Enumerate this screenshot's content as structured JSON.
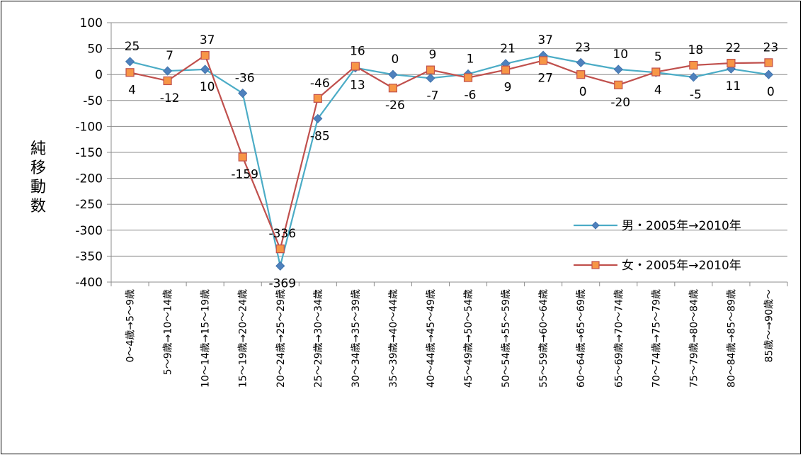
{
  "chart_data": {
    "type": "line",
    "title": "",
    "ylabel": "純移動数",
    "xlabel": "",
    "ylim": [
      -400,
      100
    ],
    "yticks": [
      100,
      50,
      0,
      -50,
      -100,
      -150,
      -200,
      -250,
      -300,
      -350,
      -400
    ],
    "grid": true,
    "legend_position": "right",
    "categories": [
      "0～4歳→5～9歳",
      "5～9歳→10～14歳",
      "10～14歳→15～19歳",
      "15～19歳→20～24歳",
      "20～24歳→25～29歳",
      "25～29歳→30～34歳",
      "30～34歳→35～39歳",
      "35～39歳→40～44歳",
      "40～44歳→45～49歳",
      "45～49歳→50～54歳",
      "50～54歳→55～59歳",
      "55～59歳→60～64歳",
      "60～64歳→65～69歳",
      "65～69歳→70～74歳",
      "70～74歳→75～79歳",
      "75～79歳→80～84歳",
      "80～84歳→85～89歳",
      "85歳～→90歳～"
    ],
    "series": [
      {
        "name": "男・2005年→2010年",
        "color": "#4bacc6",
        "marker_fill": "#4f81bd",
        "marker": "diamond",
        "values": [
          25,
          7,
          10,
          -36,
          -369,
          -85,
          13,
          0,
          -7,
          1,
          21,
          37,
          23,
          10,
          4,
          -5,
          11,
          0
        ]
      },
      {
        "name": "女・2005年→2010年",
        "color": "#c0504d",
        "marker_fill": "#f79646",
        "marker": "square",
        "values": [
          4,
          -12,
          37,
          -159,
          -336,
          -46,
          16,
          -26,
          9,
          -6,
          9,
          27,
          0,
          -20,
          5,
          18,
          22,
          23
        ]
      }
    ]
  }
}
